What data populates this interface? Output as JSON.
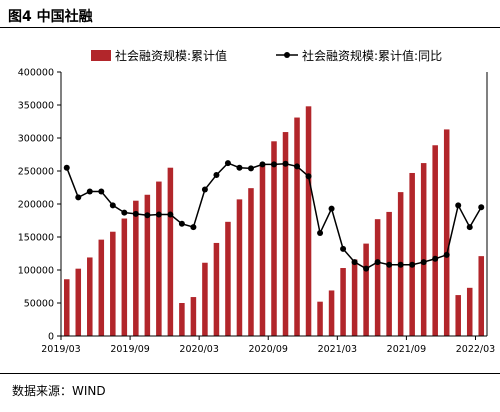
{
  "figure": {
    "title": "图4 中国社融",
    "source": "数据来源：WIND"
  },
  "colors": {
    "bar": "#b2262b",
    "line": "#000000",
    "axis": "#000000"
  },
  "chart_data": {
    "type": "bar+line",
    "title": "",
    "xlabel": "",
    "ylabel": "",
    "ylim": [
      0,
      400000
    ],
    "y_ticks": [
      "0",
      "50000",
      "100000",
      "150000",
      "200000",
      "250000",
      "300000",
      "350000",
      "400000"
    ],
    "secondary_axis": "right, unlabeled",
    "legend_position": "top",
    "grid": false,
    "x_tick_labels": [
      "2019/03",
      "2019/09",
      "2020/03",
      "2020/09",
      "2021/03",
      "2021/09",
      "2022/03"
    ],
    "categories": [
      "2019/03",
      "2019/04",
      "2019/05",
      "2019/06",
      "2019/07",
      "2019/08",
      "2019/09",
      "2019/10",
      "2019/11",
      "2019/12",
      "2020/01",
      "2020/02",
      "2020/03",
      "2020/04",
      "2020/05",
      "2020/06",
      "2020/07",
      "2020/08",
      "2020/09",
      "2020/10",
      "2020/11",
      "2020/12",
      "2021/01",
      "2021/02",
      "2021/03",
      "2021/04",
      "2021/05",
      "2021/06",
      "2021/07",
      "2021/08",
      "2021/09",
      "2021/10",
      "2021/11",
      "2021/12",
      "2022/01",
      "2022/02",
      "2022/03"
    ],
    "series": [
      {
        "name": "社会融资规模:累计值",
        "kind": "bar",
        "axis": "left",
        "values": [
          86000,
          102000,
          119000,
          146000,
          158000,
          178000,
          205000,
          214000,
          234000,
          255000,
          50000,
          59000,
          111000,
          141000,
          173000,
          207000,
          224000,
          260000,
          295000,
          309000,
          331000,
          348000,
          52000,
          69000,
          103000,
          116000,
          140000,
          177000,
          188000,
          218000,
          247000,
          262000,
          289000,
          313000,
          62000,
          73000,
          121000
        ]
      },
      {
        "name": "社会融资规模:累计值:同比",
        "kind": "line",
        "axis": "right",
        "values": [
          255000,
          210000,
          219000,
          219000,
          198000,
          187000,
          185000,
          183000,
          184000,
          184000,
          170000,
          165000,
          222000,
          244000,
          262000,
          255000,
          254000,
          260000,
          260000,
          261000,
          257000,
          242000,
          156000,
          193000,
          132000,
          112000,
          102000,
          112000,
          108000,
          108000,
          108000,
          112000,
          117000,
          123000,
          198000,
          165000,
          195000
        ]
      }
    ]
  }
}
